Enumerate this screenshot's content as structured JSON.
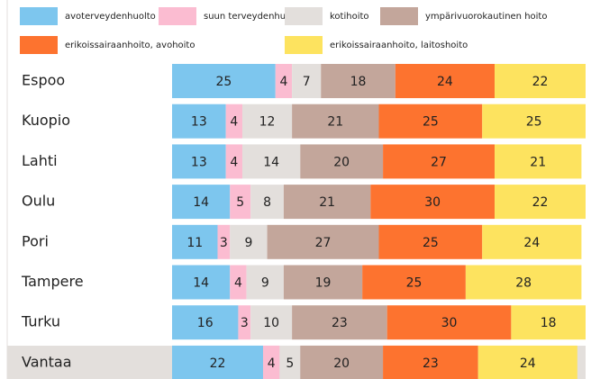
{
  "chart_data": {
    "type": "stacked-bar",
    "categories": [
      "Espoo",
      "Kuopio",
      "Lahti",
      "Oulu",
      "Pori",
      "Tampere",
      "Turku",
      "Vantaa"
    ],
    "xlim": [
      0,
      100
    ],
    "series": [
      {
        "name": "avoterveydenhuolto",
        "color": "#7dc6ee",
        "values": [
          25,
          13,
          13,
          14,
          11,
          14,
          16,
          22
        ]
      },
      {
        "name": "suun terveydenhuolto",
        "color": "#fbbcd1",
        "values": [
          4,
          4,
          4,
          5,
          3,
          4,
          3,
          4
        ]
      },
      {
        "name": "kotihoito",
        "color": "#e3dfdc",
        "values": [
          7,
          12,
          14,
          8,
          9,
          9,
          10,
          5
        ]
      },
      {
        "name": "ympärivuorokautinen hoito",
        "color": "#c3a69b",
        "values": [
          18,
          21,
          20,
          21,
          27,
          19,
          23,
          20
        ]
      },
      {
        "name": "erikoissairaanhoito, avohoito",
        "color": "#fd732f",
        "values": [
          24,
          25,
          27,
          30,
          25,
          25,
          30,
          23
        ]
      },
      {
        "name": "erikoissairaanhoito, laitoshoito",
        "color": "#fde35f",
        "values": [
          22,
          25,
          21,
          22,
          24,
          28,
          18,
          24
        ]
      }
    ]
  }
}
